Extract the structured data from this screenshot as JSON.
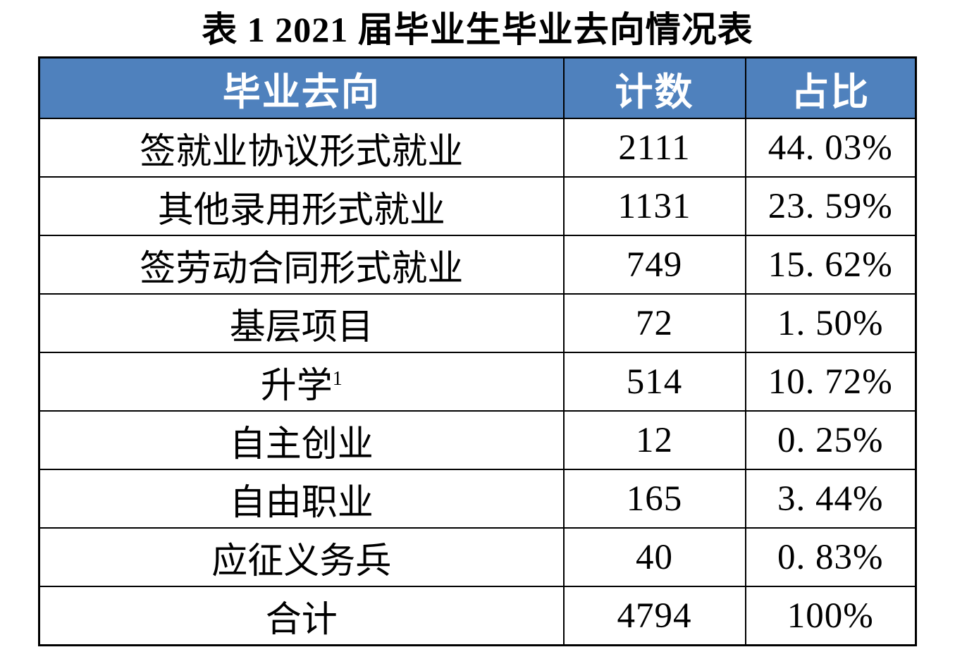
{
  "page": {
    "title": "表 1 2021 届毕业生毕业去向情况表"
  },
  "colors": {
    "header_background": "#4F81BD",
    "header_text": "#FFFFFF",
    "border": "#000000",
    "body_text": "#000000"
  },
  "table": {
    "headers": {
      "destination": "毕业去向",
      "count": "计数",
      "percent": "占比"
    },
    "rows": [
      {
        "destination": "签就业协议形式就业",
        "count": "2111",
        "percent": "44. 03%"
      },
      {
        "destination": "其他录用形式就业",
        "count": "1131",
        "percent": "23. 59%"
      },
      {
        "destination": "签劳动合同形式就业",
        "count": "749",
        "percent": "15. 62%"
      },
      {
        "destination": "基层项目",
        "count": "72",
        "percent": "1. 50%"
      },
      {
        "destination": "升学",
        "sup": "1",
        "count": "514",
        "percent": "10. 72%"
      },
      {
        "destination": "自主创业",
        "count": "12",
        "percent": "0. 25%"
      },
      {
        "destination": "自由职业",
        "count": "165",
        "percent": "3. 44%"
      },
      {
        "destination": "应征义务兵",
        "count": "40",
        "percent": "0. 83%"
      },
      {
        "destination": "合计",
        "count": "4794",
        "percent": "100%"
      }
    ]
  }
}
